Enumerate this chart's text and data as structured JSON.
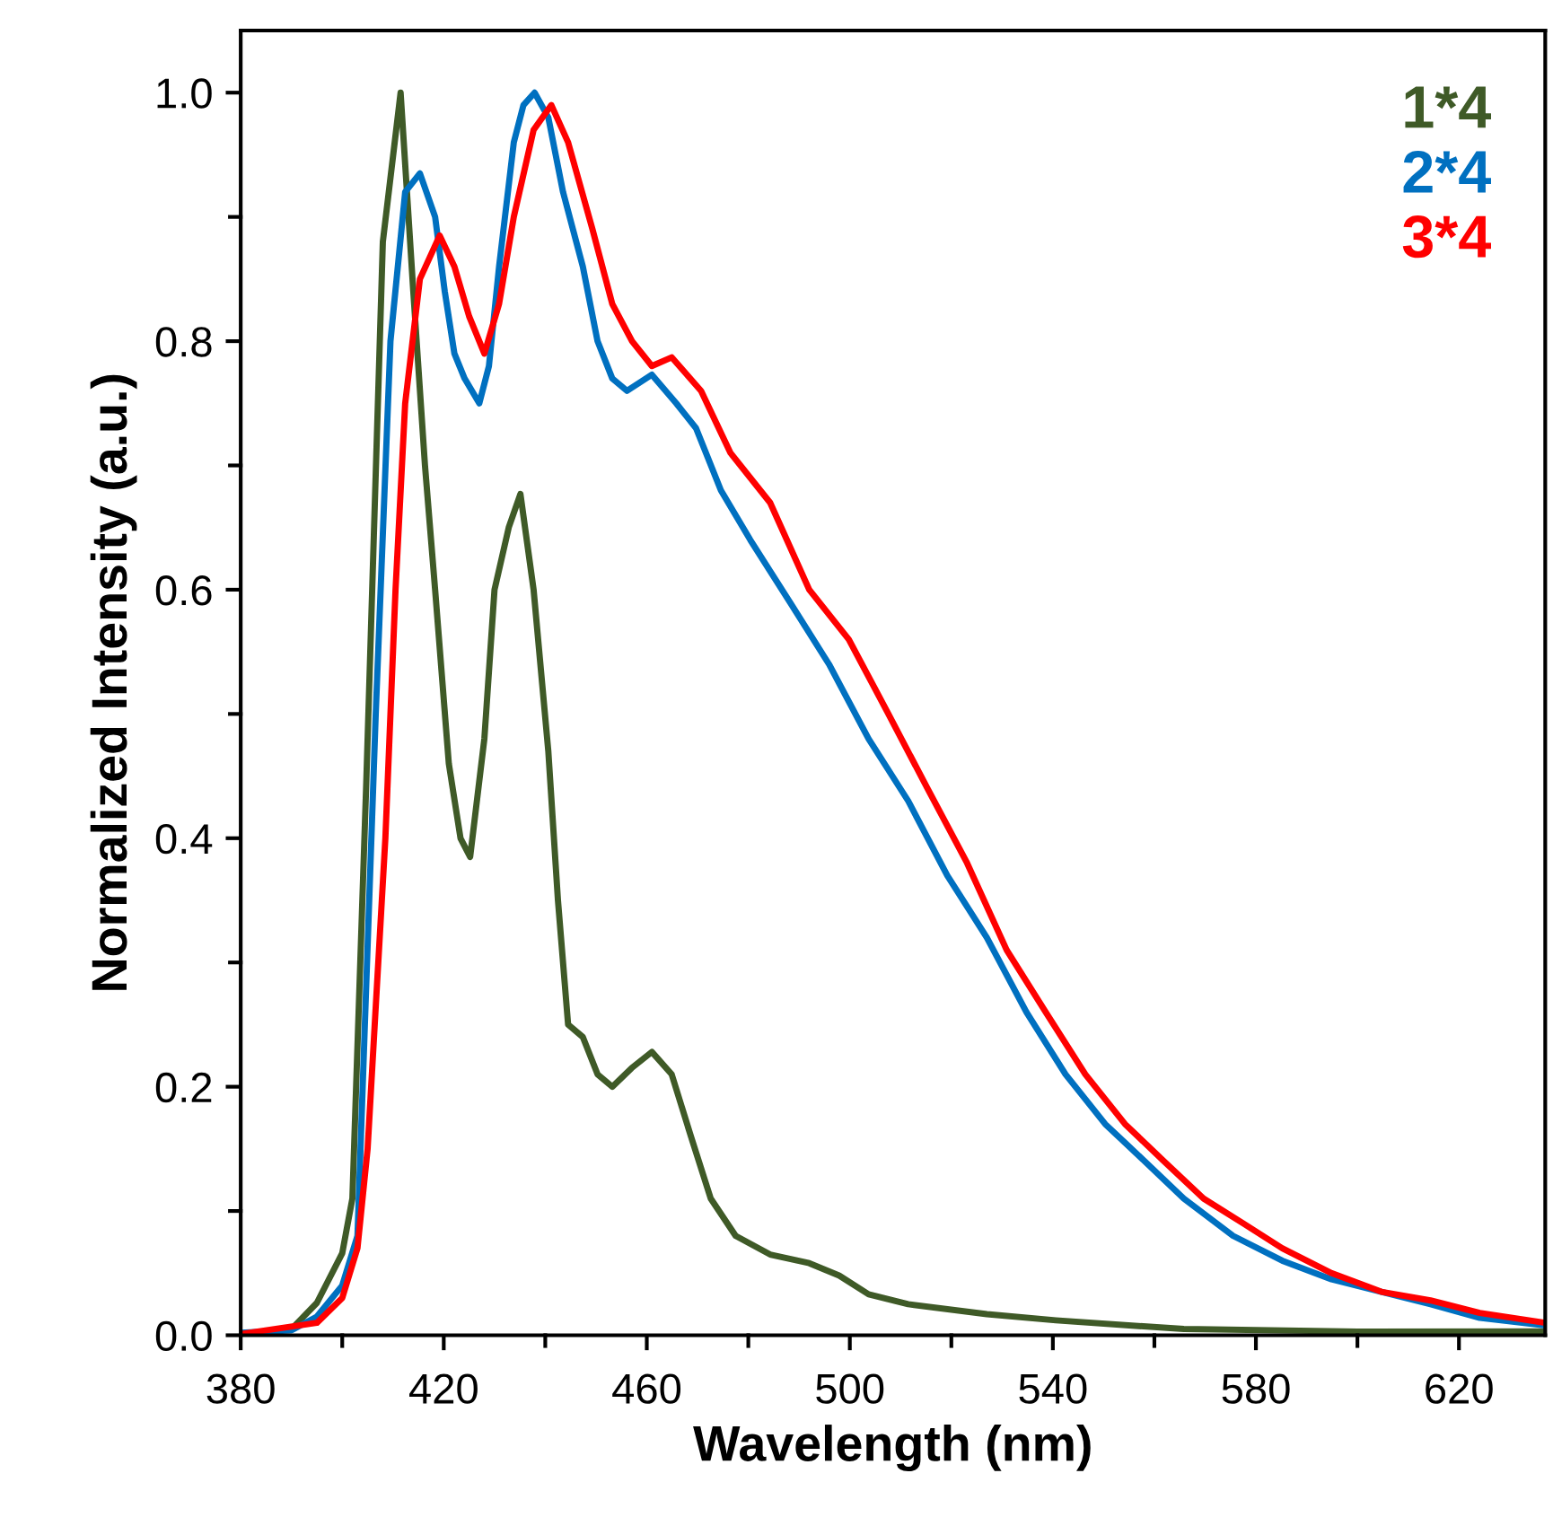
{
  "chart_data": {
    "type": "line",
    "xlabel": "Wavelength (nm)",
    "ylabel": "Normalized Intensity (a.u.)",
    "xlim": [
      380,
      637
    ],
    "ylim": [
      0,
      1.05
    ],
    "xticks": [
      380,
      {
        "value": 400,
        "label": null
      },
      420,
      {
        "value": 440,
        "label": null
      },
      460,
      {
        "value": 480,
        "label": null
      },
      500,
      {
        "value": 520,
        "label": null
      },
      540,
      {
        "value": 560,
        "label": null
      },
      580,
      {
        "value": 600,
        "label": null
      },
      620
    ],
    "yticks": [
      {
        "value": 0,
        "label": "0.0"
      },
      {
        "value": 0.1,
        "label": null
      },
      {
        "value": 0.2,
        "label": "0.2"
      },
      {
        "value": 0.3,
        "label": null
      },
      {
        "value": 0.4,
        "label": "0.4"
      },
      {
        "value": 0.5,
        "label": null
      },
      {
        "value": 0.6,
        "label": "0.6"
      },
      {
        "value": 0.7,
        "label": null
      },
      {
        "value": 0.8,
        "label": "0.8"
      },
      {
        "value": 0.9,
        "label": null
      },
      {
        "value": 1.0,
        "label": "1.0"
      }
    ],
    "grid": false,
    "legend": "top right",
    "marker": "none",
    "line_style": "solid",
    "series": [
      {
        "name": "1*4",
        "color": "#3f5a27",
        "x": [
          380,
          390,
          395,
          400,
          402,
          404.7,
          408,
          411.5,
          414,
          416.3,
          418.3,
          421,
          423.3,
          425.2,
          428,
          430,
          432.8,
          435.1,
          437.7,
          440.6,
          442.5,
          444.5,
          447.4,
          450.3,
          453.2,
          457,
          461,
          464.9,
          468.7,
          472.6,
          477.5,
          484.3,
          492,
          497.9,
          503.7,
          511.5,
          527,
          540.6,
          565.8,
          600,
          637
        ],
        "values": [
          0,
          0.005,
          0.026,
          0.066,
          0.11,
          0.44,
          0.88,
          1.0,
          0.84,
          0.7,
          0.6,
          0.46,
          0.4,
          0.385,
          0.48,
          0.6,
          0.65,
          0.677,
          0.6,
          0.47,
          0.35,
          0.25,
          0.24,
          0.21,
          0.2,
          0.215,
          0.228,
          0.21,
          0.16,
          0.11,
          0.08,
          0.065,
          0.058,
          0.048,
          0.033,
          0.025,
          0.017,
          0.012,
          0.005,
          0.003,
          0.003
        ]
      },
      {
        "name": "2*4",
        "color": "#0070c0",
        "x": [
          380,
          390,
          395,
          400,
          403,
          406.6,
          409.5,
          412.4,
          415.3,
          418.3,
          420.2,
          422.1,
          424.1,
          427,
          428.9,
          430.9,
          433.8,
          435.7,
          437.9,
          440.6,
          443.5,
          447.4,
          450.3,
          453.2,
          456.1,
          461,
          465.8,
          469.7,
          474.6,
          480.4,
          488.2,
          495.9,
          503.7,
          511.5,
          519.2,
          527,
          534.8,
          542.5,
          550.3,
          558.1,
          565.8,
          575.5,
          585.2,
          594.9,
          604.7,
          614.4,
          624.1,
          637
        ],
        "values": [
          0.002,
          0.004,
          0.015,
          0.04,
          0.08,
          0.5,
          0.8,
          0.92,
          0.935,
          0.9,
          0.84,
          0.79,
          0.77,
          0.75,
          0.78,
          0.86,
          0.96,
          0.99,
          1.0,
          0.98,
          0.92,
          0.86,
          0.8,
          0.77,
          0.76,
          0.773,
          0.75,
          0.73,
          0.68,
          0.64,
          0.59,
          0.54,
          0.48,
          0.43,
          0.37,
          0.32,
          0.26,
          0.21,
          0.17,
          0.14,
          0.11,
          0.08,
          0.06,
          0.045,
          0.035,
          0.025,
          0.014,
          0.008
        ]
      },
      {
        "name": "3*4",
        "color": "#ff0000",
        "x": [
          380,
          395,
          400,
          403,
          405,
          408.5,
          410.5,
          412.4,
          415.3,
          419.2,
          422.1,
          425,
          428,
          430.9,
          433.8,
          437.7,
          441.2,
          444.5,
          449.3,
          453.2,
          457.1,
          461,
          464.9,
          470.7,
          476.5,
          484.3,
          492,
          499.8,
          507.6,
          515.3,
          523.1,
          530.9,
          538.6,
          546.4,
          554.2,
          561.9,
          569.7,
          577.5,
          585.2,
          594.9,
          604.7,
          614.4,
          624.1,
          637
        ],
        "values": [
          0.001,
          0.01,
          0.03,
          0.07,
          0.15,
          0.4,
          0.6,
          0.75,
          0.85,
          0.885,
          0.86,
          0.82,
          0.79,
          0.83,
          0.9,
          0.97,
          0.99,
          0.96,
          0.89,
          0.83,
          0.8,
          0.78,
          0.787,
          0.76,
          0.71,
          0.67,
          0.6,
          0.56,
          0.5,
          0.44,
          0.38,
          0.31,
          0.26,
          0.21,
          0.17,
          0.14,
          0.11,
          0.09,
          0.07,
          0.05,
          0.035,
          0.028,
          0.018,
          0.01
        ]
      }
    ]
  }
}
